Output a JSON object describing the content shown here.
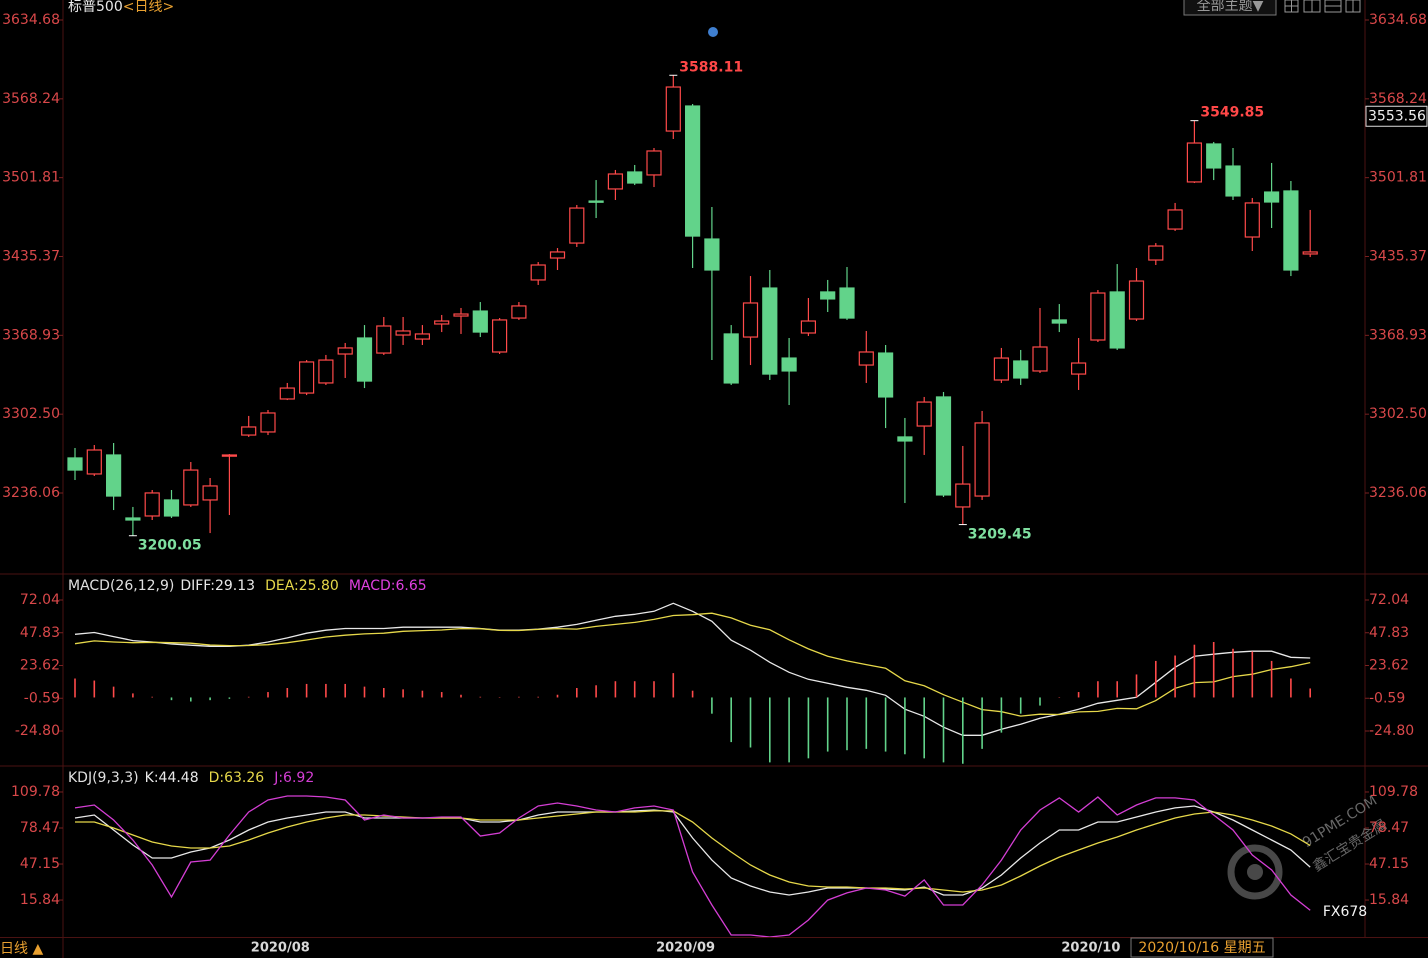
{
  "chart_data": [
    {
      "type": "candlestick",
      "title": "标普500",
      "period": "<日线>",
      "up_color": "#ff4a4a",
      "down_color": "#62d38a",
      "ylim": [
        3168.64,
        3643.11
      ],
      "yticks": [
        3634.68,
        3568.24,
        3501.81,
        3435.37,
        3368.93,
        {
          "value": 3302.5,
          "label": "3302.50"
        },
        3236.06
      ],
      "last_price": 3553.56,
      "open": [
        3265.6,
        3252.1,
        3268.1,
        3215.0,
        3216.7,
        3230.2,
        3226.0,
        3230.2,
        3267.2,
        3284.9,
        3287.5,
        3315.3,
        3320.3,
        3328.8,
        3353.2,
        3366.7,
        3354.0,
        3369.2,
        3365.8,
        3378.5,
        3385.2,
        3389.4,
        3354.9,
        3383.5,
        3415.6,
        3434.1,
        3446.7,
        3482.1,
        3492.3,
        3506.6,
        3504.1,
        3541.1,
        3562.2,
        3450.1,
        3370.1,
        3367.5,
        3408.8,
        3349.8,
        3370.9,
        3405.5,
        3408.8,
        3343.9,
        3354.0,
        3283.3,
        3292.5,
        3317.0,
        3224.3,
        3233.5,
        3331.3,
        3347.3,
        3338.9,
        3381.9,
        3336.3,
        3365.0,
        3405.5,
        3382.7,
        3432.4,
        3458.5,
        3498.2,
        3530.2,
        3511.6,
        3451.8,
        3489.7,
        3490.6,
        3437.5
      ],
      "high": [
        3274.0,
        3276.5,
        3278.2,
        3224.3,
        3238.6,
        3238.6,
        3262.2,
        3248.7,
        3268.9,
        3301.0,
        3306.0,
        3328.8,
        3348.1,
        3352.4,
        3362.5,
        3377.6,
        3384.4,
        3384.4,
        3377.6,
        3386.1,
        3392.0,
        3397.0,
        3383.5,
        3397.0,
        3430.7,
        3442.5,
        3478.8,
        3499.8,
        3508.3,
        3512.5,
        3526.8,
        3588.11,
        3563.9,
        3477.1,
        3377.6,
        3418.9,
        3424.0,
        3366.7,
        3400.4,
        3415.6,
        3426.5,
        3372.6,
        3360.8,
        3299.3,
        3317.0,
        3321.2,
        3275.7,
        3305.2,
        3358.3,
        3356.6,
        3392.0,
        3395.3,
        3366.7,
        3407.1,
        3429.0,
        3425.7,
        3446.7,
        3480.5,
        3549.85,
        3531.9,
        3526.8,
        3484.7,
        3514.2,
        3499.0,
        3474.6
      ],
      "low": [
        3247.0,
        3250.4,
        3221.7,
        3200.05,
        3213.3,
        3215.0,
        3224.3,
        3202.3,
        3217.5,
        3283.3,
        3284.9,
        3314.4,
        3318.6,
        3327.1,
        3333.0,
        3324.5,
        3352.4,
        3360.8,
        3360.8,
        3371.7,
        3370.1,
        3367.5,
        3353.2,
        3381.9,
        3411.4,
        3424.0,
        3443.4,
        3467.8,
        3483.0,
        3495.6,
        3493.9,
        3534.4,
        3425.7,
        3348.1,
        3327.1,
        3343.9,
        3331.3,
        3310.2,
        3368.4,
        3388.6,
        3381.9,
        3328.8,
        3290.8,
        3227.6,
        3268.1,
        3232.7,
        3209.45,
        3230.2,
        3328.8,
        3327.1,
        3337.2,
        3371.7,
        3322.9,
        3363.3,
        3356.6,
        3381.0,
        3428.2,
        3456.9,
        3497.3,
        3499.8,
        3483.0,
        3440.0,
        3459.4,
        3418.9,
        3434.9
      ],
      "close": [
        3255.4,
        3272.3,
        3233.5,
        3213.3,
        3236.1,
        3216.7,
        3255.4,
        3242.0,
        3268.1,
        3291.7,
        3303.5,
        3324.5,
        3346.5,
        3348.1,
        3358.3,
        3330.4,
        3376.8,
        3372.6,
        3370.1,
        3381.0,
        3386.9,
        3371.7,
        3381.9,
        3393.7,
        3428.2,
        3439.2,
        3476.2,
        3481.3,
        3504.9,
        3497.3,
        3524.3,
        3578.2,
        3452.6,
        3424.0,
        3328.8,
        3396.2,
        3336.3,
        3338.9,
        3381.0,
        3399.6,
        3383.5,
        3354.9,
        3317.0,
        3279.9,
        3312.7,
        3234.4,
        3243.6,
        3295.1,
        3349.8,
        3333.0,
        3359.1,
        3379.3,
        3345.6,
        3404.6,
        3358.3,
        3414.7,
        3444.2,
        3474.6,
        3531.0,
        3510.0,
        3486.4,
        3480.5,
        3481.3,
        3424.0,
        3439.2
      ]
    },
    {
      "type": "macd",
      "title": "MACD(26,12,9)",
      "ylim": [
        -49.93,
        90.52
      ],
      "yticks": [
        72.04,
        47.83,
        23.62,
        -0.59,
        {
          "value": -24.8,
          "label": "-24.80"
        }
      ],
      "series": [
        {
          "name": "DIFF:29.13",
          "color": "#e8e8e8",
          "style": "line",
          "values": [
            46.7,
            48,
            45,
            42,
            41,
            39.5,
            38.6,
            37.8,
            37.8,
            38.6,
            41,
            44,
            47.5,
            49.7,
            51,
            51,
            51,
            51.9,
            51.9,
            51.9,
            51.9,
            51,
            49.7,
            49.7,
            50.5,
            51.9,
            54,
            57,
            60,
            61.5,
            63.7,
            69.6,
            63.7,
            56.3,
            42.3,
            34.9,
            26,
            18.6,
            13.4,
            10.5,
            7.5,
            5.3,
            1.6,
            -8.7,
            -13.9,
            -22,
            -28,
            -28,
            -23.5,
            -19.8,
            -15.4,
            -12.4,
            -8.7,
            -4.3,
            -2.1,
            0.1,
            11.2,
            22.3,
            30.5,
            32,
            33.4,
            34.2,
            34.2,
            29.7,
            29.13
          ]
        },
        {
          "name": "DEA:25.80",
          "color": "#e6d84a",
          "style": "line",
          "values": [
            39.7,
            41.8,
            41,
            40.5,
            40.8,
            40.5,
            40.1,
            38.8,
            38.3,
            38.4,
            39,
            40.5,
            42.5,
            44.7,
            46,
            47,
            47.5,
            48.9,
            49.4,
            49.9,
            50.9,
            50.8,
            49.6,
            49.5,
            50.3,
            50.9,
            50.5,
            52.5,
            54,
            55.5,
            57.7,
            60.6,
            61.2,
            62.3,
            58.8,
            53.4,
            50,
            42.6,
            35.9,
            30.5,
            27,
            24.3,
            21.6,
            12.3,
            8.6,
            2,
            -3.5,
            -9,
            -10.5,
            -13.8,
            -12.4,
            -12.6,
            -10.7,
            -10.3,
            -8.1,
            -8.4,
            -2.3,
            6.8,
            11,
            11.5,
            15.4,
            17.2,
            20.7,
            22.7,
            25.8
          ]
        },
        {
          "name": "MACD:6.65",
          "color": "#e040e0",
          "style": "bar",
          "up_color": "#ff4a4a",
          "down_color": "#62d38a",
          "values": [
            14,
            12.5,
            8,
            3,
            0.5,
            -2,
            -3,
            -2,
            -1,
            0.5,
            4,
            7,
            10,
            10,
            10,
            8,
            7,
            6,
            5,
            4,
            2,
            0.5,
            0.3,
            0.5,
            0.5,
            2,
            7,
            9,
            12,
            12,
            12,
            18,
            5,
            -12,
            -33,
            -37,
            -48,
            -48,
            -45,
            -40,
            -39,
            -38,
            -40,
            -42,
            -45,
            -48,
            -49,
            -38,
            -26,
            -12,
            -6,
            0.3,
            4,
            12,
            12,
            17,
            27,
            31,
            39,
            41,
            36,
            34,
            27,
            14,
            6.65
          ]
        }
      ]
    },
    {
      "type": "line",
      "title": "KDJ(9,3,3)",
      "ylim": [
        -16.3,
        131.5
      ],
      "yticks": [
        109.78,
        78.47,
        47.15,
        15.84
      ],
      "categories": [
        null,
        null,
        null,
        null,
        null,
        null,
        null,
        null,
        null,
        null,
        null,
        "2020/08",
        null,
        null,
        null,
        null,
        null,
        null,
        null,
        null,
        null,
        null,
        null,
        null,
        null,
        null,
        null,
        null,
        null,
        null,
        null,
        null,
        "2020/09",
        null,
        null,
        null,
        null,
        null,
        null,
        null,
        null,
        null,
        null,
        null,
        null,
        null,
        null,
        null,
        null,
        null,
        null,
        null,
        null,
        "2020/10",
        null,
        null,
        null,
        null,
        null,
        null,
        null,
        null,
        null,
        null,
        null
      ],
      "series": [
        {
          "name": "K:44.48",
          "color": "#e8e8e8",
          "values": [
            87.2,
            89.8,
            76.7,
            63.7,
            52.4,
            52.4,
            57.6,
            61.1,
            68.0,
            76.7,
            83.7,
            87.2,
            89.8,
            92.4,
            92.4,
            87.2,
            87.2,
            87.2,
            87.2,
            87.2,
            87.2,
            83.7,
            83.7,
            85.4,
            89.8,
            92.4,
            92.4,
            92.4,
            92.4,
            93.3,
            94.1,
            92.4,
            69.8,
            50.6,
            35.0,
            28.0,
            22.8,
            20.2,
            22.8,
            26.3,
            26.3,
            26.3,
            25.4,
            24.6,
            27.2,
            20.2,
            20.2,
            26.3,
            37.6,
            52.4,
            65.4,
            76.7,
            76.7,
            83.7,
            83.7,
            88.0,
            92.4,
            95.9,
            97.6,
            92.4,
            85.4,
            76.7,
            68.0,
            59.3,
            44.48
          ]
        },
        {
          "name": "D:63.26",
          "color": "#e6d84a",
          "values": [
            83.7,
            83.7,
            78.5,
            72.4,
            66.3,
            62.8,
            61.1,
            61.1,
            62.8,
            68.0,
            74.1,
            79.3,
            83.7,
            87.2,
            89.8,
            89.8,
            88.9,
            88.0,
            87.2,
            87.2,
            87.2,
            85.4,
            85.4,
            85.4,
            87.2,
            88.9,
            90.6,
            92.4,
            92.4,
            92.4,
            93.3,
            93.3,
            83.7,
            69.8,
            57.6,
            46.3,
            37.6,
            31.5,
            28.0,
            27.2,
            27.2,
            26.3,
            26.3,
            25.4,
            26.3,
            24.6,
            22.8,
            24.6,
            28.9,
            36.7,
            45.4,
            53.2,
            59.3,
            65.4,
            70.6,
            76.7,
            82.0,
            87.2,
            90.6,
            92.4,
            89.8,
            85.4,
            80.2,
            73.3,
            63.26
          ]
        },
        {
          "name": "J:6.92",
          "color": "#d43ed4",
          "values": [
            95.9,
            98.5,
            85.4,
            68.0,
            46.3,
            18.5,
            48.9,
            50.6,
            72.4,
            92.4,
            102.8,
            106.3,
            106.3,
            105.4,
            102.8,
            85.4,
            89.8,
            87.2,
            87.2,
            88.0,
            88.0,
            71.5,
            74.1,
            87.2,
            97.6,
            100.2,
            97.6,
            94.1,
            92.4,
            95.9,
            97.6,
            94.1,
            40.2,
            11.5,
            -14.6,
            -14.6,
            -16.3,
            -14.6,
            -1.5,
            15.8,
            22.0,
            26.3,
            24.6,
            19.3,
            33.3,
            11.5,
            11.5,
            28.9,
            50.6,
            76.7,
            94.1,
            104.6,
            92.4,
            105.4,
            89.8,
            98.5,
            104.6,
            104.6,
            102.8,
            89.8,
            76.7,
            55.0,
            42.0,
            20.2,
            6.92
          ]
        }
      ]
    }
  ],
  "toolbar": {
    "theme_button": "全部主题▼"
  },
  "footer": {
    "period": "日线 ▲",
    "cursor_date": "2020/10/16 星期五"
  },
  "watermark": {
    "brand": "FX678",
    "logo": "91PME.COM",
    "logo_sub": "鑫汇宝贵金属"
  }
}
